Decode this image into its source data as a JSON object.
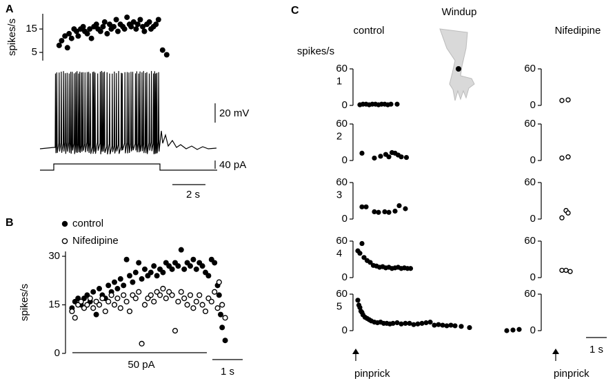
{
  "labels": {
    "panel_a": "A",
    "panel_b": "B",
    "panel_c": "C",
    "windup": "Windup",
    "control": "control",
    "nifedipine": "Nifedipine",
    "spikes_per_s": "spikes/s",
    "pinprick_control": "pinprick",
    "pinprick_nifedipine": "pinprick",
    "scale_mv": "20 mV",
    "scale_pa": "40 pA",
    "scale_a_time": "2 s",
    "stimulus_b": "50 pA",
    "scale_b_time": "1 s",
    "scale_c_time": "1 s"
  },
  "chart_data": [
    {
      "type": "scatter",
      "ylabel": "spikes/s",
      "ylim": [
        1.5,
        21.5
      ],
      "yticks": [
        5,
        15
      ],
      "xlim": [
        0,
        10
      ],
      "series": [
        {
          "marker": "filled",
          "color": "#000000",
          "x": [
            0.45,
            0.6,
            0.8,
            0.95,
            1.05,
            1.2,
            1.35,
            1.5,
            1.6,
            1.75,
            1.9,
            2.0,
            2.15,
            2.3,
            2.4,
            2.55,
            2.7,
            2.8,
            2.95,
            3.1,
            3.2,
            3.35,
            3.5,
            3.6,
            3.75,
            3.9,
            4.0,
            4.15,
            4.3,
            4.4,
            4.55,
            4.7,
            4.8,
            4.95,
            5.1,
            5.2,
            5.35,
            5.5,
            5.6,
            5.75,
            5.9,
            6.0,
            6.15,
            6.3,
            6.45,
            6.7,
            6.95
          ],
          "values": [
            8,
            10,
            12,
            7,
            13,
            11,
            15,
            14,
            12,
            15,
            16,
            14,
            13,
            15,
            11,
            16,
            17,
            15,
            14,
            16,
            18,
            13,
            17,
            15,
            16,
            19,
            14,
            17,
            16,
            15,
            20,
            17,
            16,
            18,
            15,
            17,
            19,
            16,
            14,
            17,
            18,
            15,
            16,
            17,
            19,
            6,
            4
          ]
        }
      ]
    },
    {
      "type": "scatter",
      "ylabel": "spikes/s",
      "ylim": [
        0,
        31.5
      ],
      "yticks": [
        0,
        15,
        30
      ],
      "xlim": [
        0,
        5.5
      ],
      "series": [
        {
          "name": "control",
          "marker": "filled",
          "color": "#000000",
          "x": [
            0.1,
            0.2,
            0.3,
            0.4,
            0.5,
            0.6,
            0.7,
            0.8,
            0.9,
            1.0,
            1.1,
            1.2,
            1.3,
            1.4,
            1.5,
            1.6,
            1.7,
            1.8,
            1.9,
            2.0,
            2.1,
            2.2,
            2.3,
            2.4,
            2.5,
            2.6,
            2.7,
            2.8,
            2.9,
            3.0,
            3.1,
            3.2,
            3.3,
            3.4,
            3.5,
            3.6,
            3.7,
            3.8,
            3.9,
            4.0,
            4.1,
            4.2,
            4.3,
            4.4,
            4.5,
            4.6,
            4.7,
            4.8,
            4.9,
            4.95,
            5.0,
            5.05,
            5.15
          ],
          "values": [
            14,
            16,
            17,
            15,
            17,
            18,
            16,
            19,
            12,
            20,
            18,
            17,
            21,
            19,
            22,
            20,
            23,
            21,
            29,
            24,
            22,
            25,
            28,
            23,
            26,
            24,
            25,
            27,
            24,
            26,
            25,
            28,
            27,
            26,
            28,
            27,
            32,
            26,
            28,
            27,
            29,
            26,
            28,
            27,
            25,
            24,
            29,
            28,
            21,
            18,
            12,
            8,
            4
          ]
        },
        {
          "name": "Nifedipine",
          "marker": "open",
          "color": "#000000",
          "x": [
            0.1,
            0.2,
            0.3,
            0.4,
            0.5,
            0.6,
            0.7,
            0.8,
            0.9,
            1.0,
            1.1,
            1.2,
            1.3,
            1.4,
            1.5,
            1.6,
            1.7,
            1.8,
            1.9,
            2.0,
            2.1,
            2.2,
            2.3,
            2.4,
            2.5,
            2.6,
            2.7,
            2.8,
            2.9,
            3.0,
            3.1,
            3.2,
            3.3,
            3.4,
            3.5,
            3.6,
            3.7,
            3.8,
            3.9,
            4.0,
            4.1,
            4.2,
            4.3,
            4.4,
            4.5,
            4.6,
            4.7,
            4.8,
            4.9,
            4.95,
            5.05,
            5.15
          ],
          "values": [
            13,
            11,
            15,
            16,
            14,
            15,
            17,
            14,
            16,
            15,
            17,
            13,
            16,
            18,
            15,
            17,
            14,
            18,
            16,
            13,
            18,
            17,
            19,
            3,
            15,
            17,
            18,
            16,
            19,
            18,
            20,
            17,
            19,
            18,
            7,
            16,
            19,
            17,
            15,
            18,
            14,
            16,
            18,
            15,
            13,
            17,
            16,
            19,
            14,
            22,
            15,
            11
          ]
        }
      ]
    },
    {
      "type": "scatter",
      "label": "1",
      "ylim": [
        0,
        60
      ],
      "yticks": [
        0,
        60
      ],
      "xlim": [
        0,
        12.5
      ],
      "series": [
        {
          "marker": "filled",
          "color": "#000000",
          "x": [
            0.2,
            0.35,
            0.5,
            0.65,
            0.8,
            0.95,
            1.1,
            1.25,
            1.4,
            1.55,
            1.7,
            2.0
          ],
          "values": [
            1,
            2,
            2,
            1,
            2,
            2,
            1,
            2,
            2,
            1,
            2,
            2
          ]
        }
      ]
    },
    {
      "type": "scatter",
      "ylim": [
        0,
        60
      ],
      "yticks": [
        0,
        60
      ],
      "xlim": [
        0,
        2.5
      ],
      "series": [
        {
          "marker": "open",
          "color": "#000000",
          "x": [
            0.3,
            0.6
          ],
          "values": [
            8,
            9
          ]
        }
      ]
    },
    {
      "type": "scatter",
      "label": "2",
      "ylim": [
        0,
        60
      ],
      "yticks": [
        0,
        60
      ],
      "xlim": [
        0,
        12.5
      ],
      "series": [
        {
          "marker": "filled",
          "color": "#000000",
          "x": [
            0.3,
            0.9,
            1.2,
            1.45,
            1.6,
            1.75,
            1.9,
            2.05,
            2.2,
            2.45
          ],
          "values": [
            12,
            4,
            7,
            10,
            6,
            13,
            12,
            9,
            6,
            5
          ]
        }
      ]
    },
    {
      "type": "scatter",
      "ylim": [
        0,
        60
      ],
      "yticks": [
        0,
        60
      ],
      "xlim": [
        0,
        2.5
      ],
      "series": [
        {
          "marker": "open",
          "color": "#000000",
          "x": [
            0.3,
            0.6
          ],
          "values": [
            4,
            6
          ]
        }
      ]
    },
    {
      "type": "scatter",
      "label": "3",
      "ylim": [
        0,
        60
      ],
      "yticks": [
        0,
        60
      ],
      "xlim": [
        0,
        12.5
      ],
      "series": [
        {
          "marker": "filled",
          "color": "#000000",
          "x": [
            0.3,
            0.5,
            0.9,
            1.1,
            1.4,
            1.6,
            1.9,
            2.1,
            2.4
          ],
          "values": [
            20,
            20,
            12,
            11,
            12,
            11,
            13,
            22,
            17
          ]
        }
      ]
    },
    {
      "type": "scatter",
      "ylim": [
        0,
        60
      ],
      "yticks": [
        0,
        60
      ],
      "xlim": [
        0,
        2.5
      ],
      "series": [
        {
          "marker": "open",
          "color": "#000000",
          "x": [
            0.3,
            0.5,
            0.6
          ],
          "values": [
            2,
            14,
            10
          ]
        }
      ]
    },
    {
      "type": "scatter",
      "label": "4",
      "ylim": [
        0,
        60
      ],
      "yticks": [
        0,
        60
      ],
      "xlim": [
        0,
        12.5
      ],
      "series": [
        {
          "marker": "filled",
          "color": "#000000",
          "x": [
            0.1,
            0.2,
            0.3,
            0.4,
            0.55,
            0.7,
            0.85,
            1.0,
            1.15,
            1.3,
            1.45,
            1.6,
            1.75,
            1.9,
            2.05,
            2.2,
            2.35,
            2.5,
            2.65
          ],
          "values": [
            44,
            40,
            56,
            33,
            28,
            25,
            20,
            19,
            17,
            18,
            16,
            17,
            15,
            16,
            17,
            15,
            16,
            15,
            15
          ]
        }
      ]
    },
    {
      "type": "scatter",
      "ylim": [
        0,
        60
      ],
      "yticks": [
        0,
        60
      ],
      "xlim": [
        0,
        2.5
      ],
      "series": [
        {
          "marker": "open",
          "color": "#000000",
          "x": [
            0.3,
            0.5,
            0.7
          ],
          "values": [
            12,
            12,
            10
          ]
        }
      ]
    },
    {
      "type": "scatter",
      "label": "5",
      "ylim": [
        0,
        60
      ],
      "yticks": [
        0,
        60
      ],
      "xlim": [
        0,
        12.5
      ],
      "series": [
        {
          "marker": "filled",
          "color": "#000000",
          "x": [
            0.1,
            0.15,
            0.2,
            0.25,
            0.3,
            0.35,
            0.45,
            0.55,
            0.65,
            0.75,
            0.9,
            1.05,
            1.2,
            1.35,
            1.5,
            1.65,
            1.8,
            2.0,
            2.2,
            2.4,
            2.6,
            2.8,
            3.0,
            3.2,
            3.4,
            3.6,
            3.8,
            4.0,
            4.2,
            4.4,
            4.6,
            4.8,
            5.1,
            5.5,
            7.3,
            7.6,
            7.9
          ],
          "values": [
            50,
            42,
            38,
            32,
            30,
            26,
            22,
            20,
            18,
            16,
            14,
            13,
            14,
            12,
            12,
            11,
            12,
            13,
            11,
            12,
            12,
            10,
            11,
            12,
            13,
            14,
            9,
            10,
            9,
            8,
            9,
            8,
            7,
            5,
            0,
            1,
            2
          ]
        }
      ]
    },
    {
      "type": "scatter",
      "ylim": [
        0,
        60
      ],
      "yticks": [
        0,
        60
      ],
      "xlim": [
        0,
        2.5
      ]
    }
  ]
}
